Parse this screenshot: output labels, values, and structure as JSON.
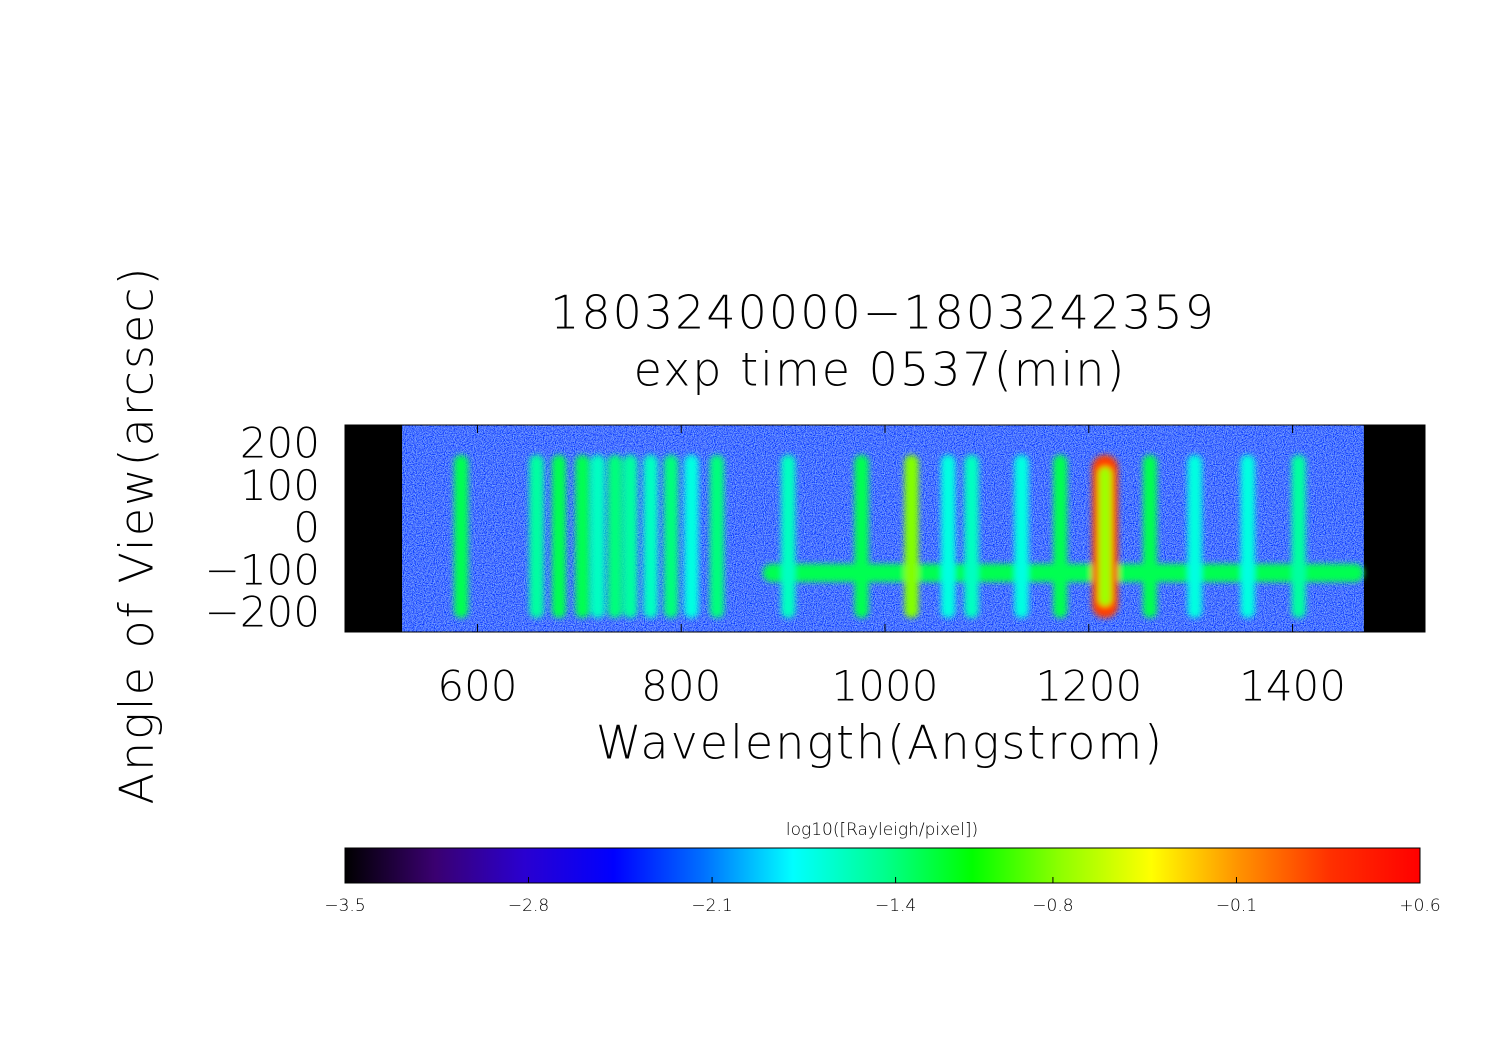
{
  "chart_data": {
    "type": "spectrogram",
    "title": "1803240000−1803242359",
    "subtitle": "exp time 0537(min)",
    "x_label": "Wavelength(Angstrom)",
    "y_label": "Angle of View(arcsec)",
    "colorbar_label": "log10([Rayleigh/pixel])",
    "xlim": [
      470,
      1530
    ],
    "ylim": [
      -240,
      250
    ],
    "xticks": [
      600,
      800,
      1000,
      1200,
      1400
    ],
    "yticks": [
      200,
      100,
      0,
      {
        "value": -100,
        "label": "−100"
      },
      {
        "value": -200,
        "label": "−200"
      }
    ],
    "clim": [
      -3.5,
      0.6
    ],
    "cticks": [
      {
        "value": -3.5,
        "label": "−3.5"
      },
      {
        "value": -2.8,
        "label": "−2.8"
      },
      {
        "value": -2.1,
        "label": "−2.1"
      },
      {
        "value": -1.4,
        "label": "−1.4"
      },
      {
        "value": -0.8,
        "label": "−0.8"
      },
      {
        "value": -0.1,
        "label": "−0.1"
      },
      {
        "value": 0.6,
        "label": "+0.6"
      }
    ],
    "colormap": [
      "#000000",
      "#3a0070",
      "#2a00d0",
      "#0000ff",
      "#0070ff",
      "#00ffff",
      "#00ff90",
      "#00ff00",
      "#90ff00",
      "#ffff00",
      "#ff9000",
      "#ff3000",
      "#ff0000"
    ],
    "data_range": [
      526,
      1470
    ],
    "background": -2.3,
    "features": {
      "x": [
        584,
        658,
        680,
        703,
        718,
        735,
        750,
        770,
        790,
        810,
        835,
        905,
        977,
        1026,
        1062,
        1085,
        1134,
        1172,
        1216,
        1260,
        1304,
        1356,
        1406
      ],
      "values": [
        -1.3,
        -1.5,
        -1.3,
        -1.3,
        -1.6,
        -1.4,
        -1.5,
        -1.6,
        -1.4,
        -1.7,
        -1.4,
        -1.6,
        -1.3,
        -0.8,
        -1.7,
        -1.6,
        -1.7,
        -1.3,
        0.2,
        -1.3,
        -1.7,
        -1.7,
        -1.5
      ]
    },
    "continuum": {
      "x": [
        880,
        1470
      ],
      "y": -100,
      "value": -1.3
    }
  }
}
